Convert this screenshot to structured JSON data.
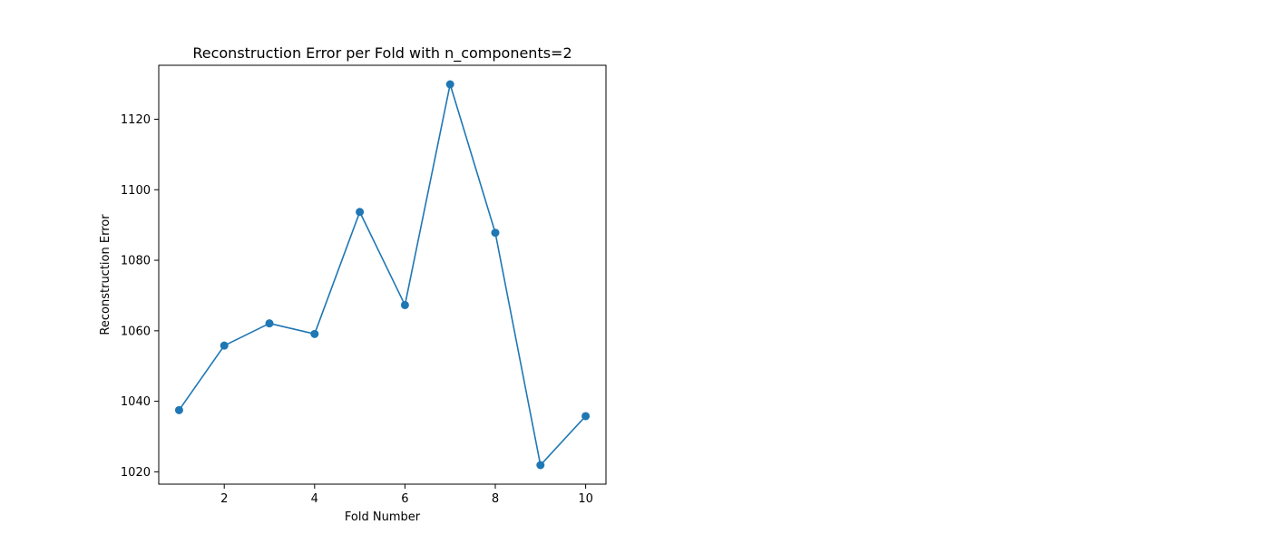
{
  "chart_data": {
    "type": "line",
    "title": "Reconstruction Error per Fold with n_components=2",
    "xlabel": "Fold Number",
    "ylabel": "Reconstruction Error",
    "x": [
      1,
      2,
      3,
      4,
      5,
      6,
      7,
      8,
      9,
      10
    ],
    "series": [
      {
        "values": [
          1037.5,
          1055.8,
          1062.1,
          1059.1,
          1093.7,
          1067.3,
          1129.9,
          1087.8,
          1021.9,
          1035.8
        ],
        "color": "#1f77b4",
        "marker": "circle"
      }
    ],
    "xticks": [
      2,
      4,
      6,
      8,
      10
    ],
    "yticks": [
      1020,
      1040,
      1060,
      1080,
      1100,
      1120
    ],
    "xlim": [
      0.55,
      10.45
    ],
    "ylim": [
      1016.5,
      1135.3
    ],
    "grid": false,
    "legend": "none"
  }
}
